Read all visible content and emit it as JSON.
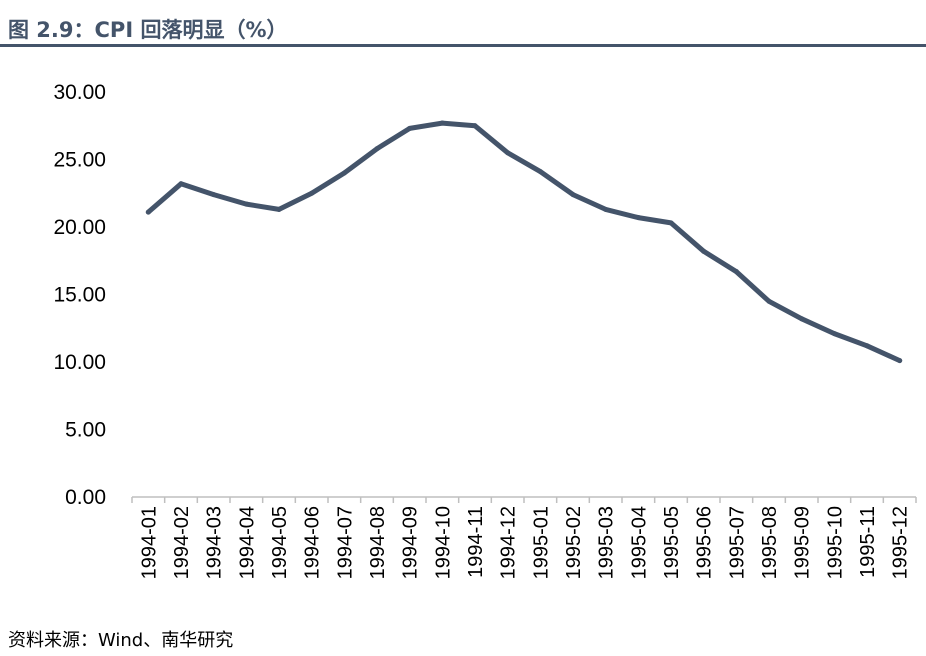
{
  "header": {
    "title": "图 2.9：CPI 回落明显（%）"
  },
  "footer": {
    "source": "资料来源：Wind、南华研究"
  },
  "colors": {
    "title": "#44546a",
    "line": "#44546a",
    "axis": "#bfbfbf"
  },
  "chart_data": {
    "type": "line",
    "title": "图 2.9：CPI 回落明显（%）",
    "xlabel": "",
    "ylabel": "",
    "ylim": [
      0,
      30
    ],
    "yticks": [
      "0.00",
      "5.00",
      "10.00",
      "15.00",
      "20.00",
      "25.00",
      "30.00"
    ],
    "grid": false,
    "legend": "none",
    "categories": [
      "1994-01",
      "1994-02",
      "1994-03",
      "1994-04",
      "1994-05",
      "1994-06",
      "1994-07",
      "1994-08",
      "1994-09",
      "1994-10",
      "1994-11",
      "1994-12",
      "1995-01",
      "1995-02",
      "1995-03",
      "1995-04",
      "1995-05",
      "1995-06",
      "1995-07",
      "1995-08",
      "1995-09",
      "1995-10",
      "1995-11",
      "1995-12"
    ],
    "series": [
      {
        "values": [
          21.1,
          23.2,
          22.4,
          21.7,
          21.3,
          22.5,
          24.0,
          25.8,
          27.3,
          27.7,
          27.5,
          25.5,
          24.1,
          22.4,
          21.3,
          20.7,
          20.3,
          18.2,
          16.7,
          14.5,
          13.2,
          12.1,
          11.2,
          10.1
        ]
      }
    ]
  }
}
